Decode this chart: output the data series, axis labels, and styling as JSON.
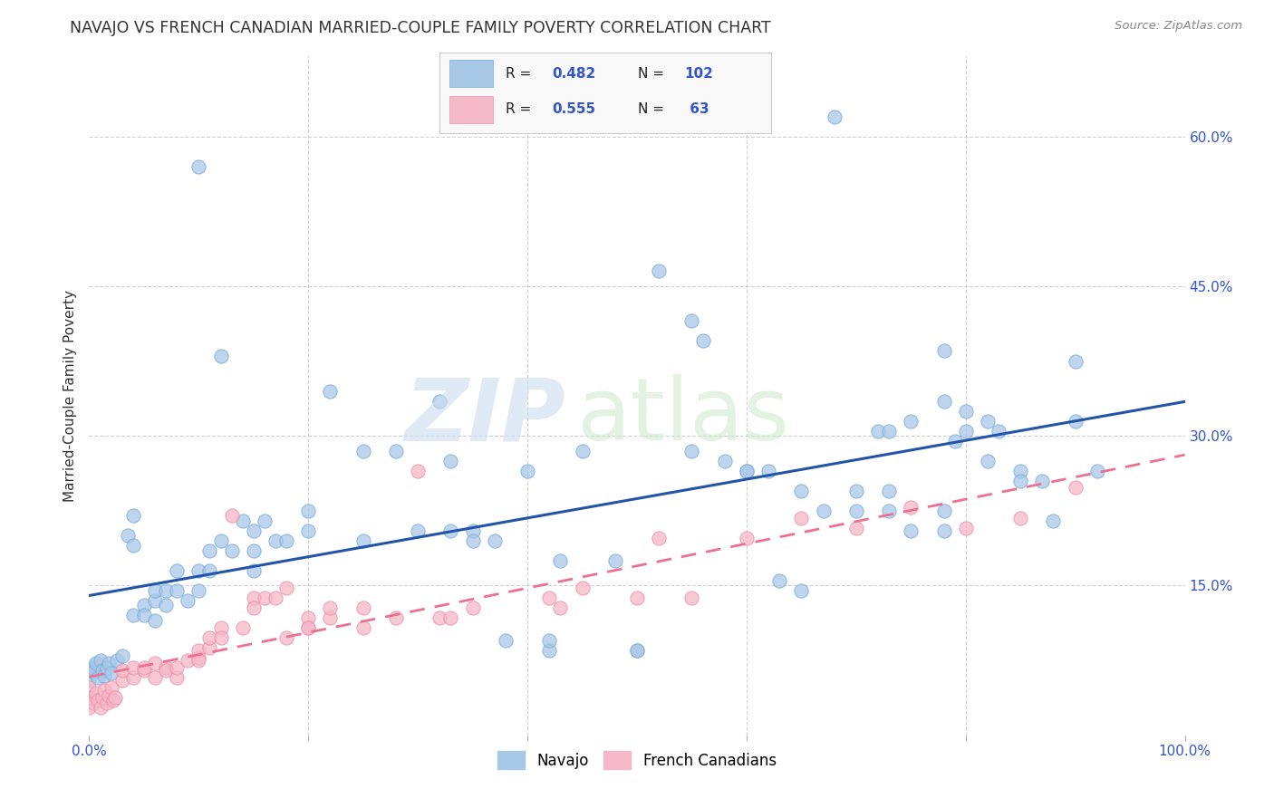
{
  "title": "NAVAJO VS FRENCH CANADIAN MARRIED-COUPLE FAMILY POVERTY CORRELATION CHART",
  "source": "Source: ZipAtlas.com",
  "ylabel": "Married-Couple Family Poverty",
  "xlim": [
    0,
    1.0
  ],
  "ylim": [
    0,
    0.68
  ],
  "xticks": [
    0.0,
    0.2,
    0.4,
    0.6,
    0.8,
    1.0
  ],
  "xtick_labels": [
    "0.0%",
    "",
    "",
    "",
    "",
    "100.0%"
  ],
  "yticks": [
    0.0,
    0.15,
    0.3,
    0.45,
    0.6
  ],
  "ytick_labels_left": [
    "",
    "",
    "",
    "",
    ""
  ],
  "ytick_labels_right": [
    "",
    "15.0%",
    "30.0%",
    "45.0%",
    "60.0%"
  ],
  "navajo_color": "#a8c8e8",
  "navajo_edge_color": "#7aacdd",
  "french_color": "#f5b8c8",
  "french_edge_color": "#f090a8",
  "navajo_line_color": "#2255aa",
  "french_line_color": "#ee7090",
  "legend_R_color": "#000000",
  "legend_val_color": "#3355cc",
  "background_color": "#ffffff",
  "grid_color": "#cccccc",
  "title_color": "#333333",
  "ylabel_color": "#333333",
  "tick_color": "#3355cc",
  "navajo_scatter": [
    [
      0.0,
      0.065
    ],
    [
      0.0,
      0.055
    ],
    [
      0.002,
      0.068
    ],
    [
      0.004,
      0.063
    ],
    [
      0.006,
      0.072
    ],
    [
      0.008,
      0.058
    ],
    [
      0.01,
      0.075
    ],
    [
      0.012,
      0.065
    ],
    [
      0.014,
      0.06
    ],
    [
      0.016,
      0.068
    ],
    [
      0.018,
      0.072
    ],
    [
      0.02,
      0.062
    ],
    [
      0.025,
      0.075
    ],
    [
      0.03,
      0.08
    ],
    [
      0.035,
      0.2
    ],
    [
      0.04,
      0.22
    ],
    [
      0.04,
      0.19
    ],
    [
      0.04,
      0.12
    ],
    [
      0.05,
      0.13
    ],
    [
      0.05,
      0.12
    ],
    [
      0.06,
      0.135
    ],
    [
      0.06,
      0.145
    ],
    [
      0.06,
      0.115
    ],
    [
      0.07,
      0.145
    ],
    [
      0.07,
      0.13
    ],
    [
      0.08,
      0.165
    ],
    [
      0.08,
      0.145
    ],
    [
      0.09,
      0.135
    ],
    [
      0.1,
      0.57
    ],
    [
      0.1,
      0.165
    ],
    [
      0.1,
      0.145
    ],
    [
      0.11,
      0.185
    ],
    [
      0.11,
      0.165
    ],
    [
      0.12,
      0.195
    ],
    [
      0.12,
      0.38
    ],
    [
      0.13,
      0.185
    ],
    [
      0.14,
      0.215
    ],
    [
      0.15,
      0.185
    ],
    [
      0.15,
      0.165
    ],
    [
      0.15,
      0.205
    ],
    [
      0.16,
      0.215
    ],
    [
      0.17,
      0.195
    ],
    [
      0.18,
      0.195
    ],
    [
      0.2,
      0.225
    ],
    [
      0.2,
      0.205
    ],
    [
      0.22,
      0.345
    ],
    [
      0.25,
      0.285
    ],
    [
      0.25,
      0.195
    ],
    [
      0.28,
      0.285
    ],
    [
      0.3,
      0.205
    ],
    [
      0.32,
      0.335
    ],
    [
      0.33,
      0.275
    ],
    [
      0.33,
      0.205
    ],
    [
      0.35,
      0.205
    ],
    [
      0.35,
      0.195
    ],
    [
      0.37,
      0.195
    ],
    [
      0.38,
      0.095
    ],
    [
      0.4,
      0.265
    ],
    [
      0.42,
      0.085
    ],
    [
      0.42,
      0.095
    ],
    [
      0.43,
      0.175
    ],
    [
      0.45,
      0.285
    ],
    [
      0.48,
      0.175
    ],
    [
      0.5,
      0.085
    ],
    [
      0.5,
      0.085
    ],
    [
      0.52,
      0.465
    ],
    [
      0.55,
      0.415
    ],
    [
      0.55,
      0.285
    ],
    [
      0.56,
      0.395
    ],
    [
      0.58,
      0.275
    ],
    [
      0.6,
      0.265
    ],
    [
      0.6,
      0.265
    ],
    [
      0.62,
      0.265
    ],
    [
      0.63,
      0.155
    ],
    [
      0.65,
      0.245
    ],
    [
      0.65,
      0.145
    ],
    [
      0.67,
      0.225
    ],
    [
      0.68,
      0.62
    ],
    [
      0.7,
      0.225
    ],
    [
      0.7,
      0.245
    ],
    [
      0.72,
      0.305
    ],
    [
      0.73,
      0.225
    ],
    [
      0.73,
      0.305
    ],
    [
      0.73,
      0.245
    ],
    [
      0.75,
      0.315
    ],
    [
      0.75,
      0.205
    ],
    [
      0.78,
      0.385
    ],
    [
      0.78,
      0.335
    ],
    [
      0.78,
      0.205
    ],
    [
      0.78,
      0.225
    ],
    [
      0.79,
      0.295
    ],
    [
      0.8,
      0.305
    ],
    [
      0.8,
      0.325
    ],
    [
      0.82,
      0.275
    ],
    [
      0.82,
      0.315
    ],
    [
      0.83,
      0.305
    ],
    [
      0.85,
      0.265
    ],
    [
      0.85,
      0.255
    ],
    [
      0.87,
      0.255
    ],
    [
      0.88,
      0.215
    ],
    [
      0.9,
      0.315
    ],
    [
      0.9,
      0.375
    ],
    [
      0.92,
      0.265
    ]
  ],
  "french_scatter": [
    [
      0.0,
      0.038
    ],
    [
      0.0,
      0.028
    ],
    [
      0.0,
      0.048
    ],
    [
      0.002,
      0.038
    ],
    [
      0.004,
      0.032
    ],
    [
      0.006,
      0.042
    ],
    [
      0.008,
      0.035
    ],
    [
      0.01,
      0.028
    ],
    [
      0.012,
      0.038
    ],
    [
      0.014,
      0.045
    ],
    [
      0.016,
      0.032
    ],
    [
      0.018,
      0.04
    ],
    [
      0.02,
      0.048
    ],
    [
      0.022,
      0.035
    ],
    [
      0.024,
      0.038
    ],
    [
      0.03,
      0.055
    ],
    [
      0.03,
      0.065
    ],
    [
      0.04,
      0.058
    ],
    [
      0.04,
      0.068
    ],
    [
      0.05,
      0.065
    ],
    [
      0.05,
      0.068
    ],
    [
      0.06,
      0.072
    ],
    [
      0.06,
      0.058
    ],
    [
      0.07,
      0.068
    ],
    [
      0.07,
      0.065
    ],
    [
      0.08,
      0.058
    ],
    [
      0.08,
      0.068
    ],
    [
      0.09,
      0.075
    ],
    [
      0.1,
      0.078
    ],
    [
      0.1,
      0.085
    ],
    [
      0.1,
      0.075
    ],
    [
      0.11,
      0.088
    ],
    [
      0.11,
      0.098
    ],
    [
      0.12,
      0.108
    ],
    [
      0.12,
      0.098
    ],
    [
      0.13,
      0.22
    ],
    [
      0.14,
      0.108
    ],
    [
      0.15,
      0.138
    ],
    [
      0.15,
      0.128
    ],
    [
      0.16,
      0.138
    ],
    [
      0.17,
      0.138
    ],
    [
      0.18,
      0.148
    ],
    [
      0.18,
      0.098
    ],
    [
      0.2,
      0.118
    ],
    [
      0.2,
      0.108
    ],
    [
      0.2,
      0.108
    ],
    [
      0.22,
      0.118
    ],
    [
      0.22,
      0.128
    ],
    [
      0.25,
      0.108
    ],
    [
      0.25,
      0.128
    ],
    [
      0.28,
      0.118
    ],
    [
      0.3,
      0.265
    ],
    [
      0.32,
      0.118
    ],
    [
      0.33,
      0.118
    ],
    [
      0.35,
      0.128
    ],
    [
      0.42,
      0.138
    ],
    [
      0.43,
      0.128
    ],
    [
      0.45,
      0.148
    ],
    [
      0.5,
      0.138
    ],
    [
      0.52,
      0.198
    ],
    [
      0.55,
      0.138
    ],
    [
      0.6,
      0.198
    ],
    [
      0.65,
      0.218
    ],
    [
      0.7,
      0.208
    ],
    [
      0.75,
      0.228
    ],
    [
      0.8,
      0.208
    ],
    [
      0.85,
      0.218
    ],
    [
      0.9,
      0.248
    ]
  ]
}
